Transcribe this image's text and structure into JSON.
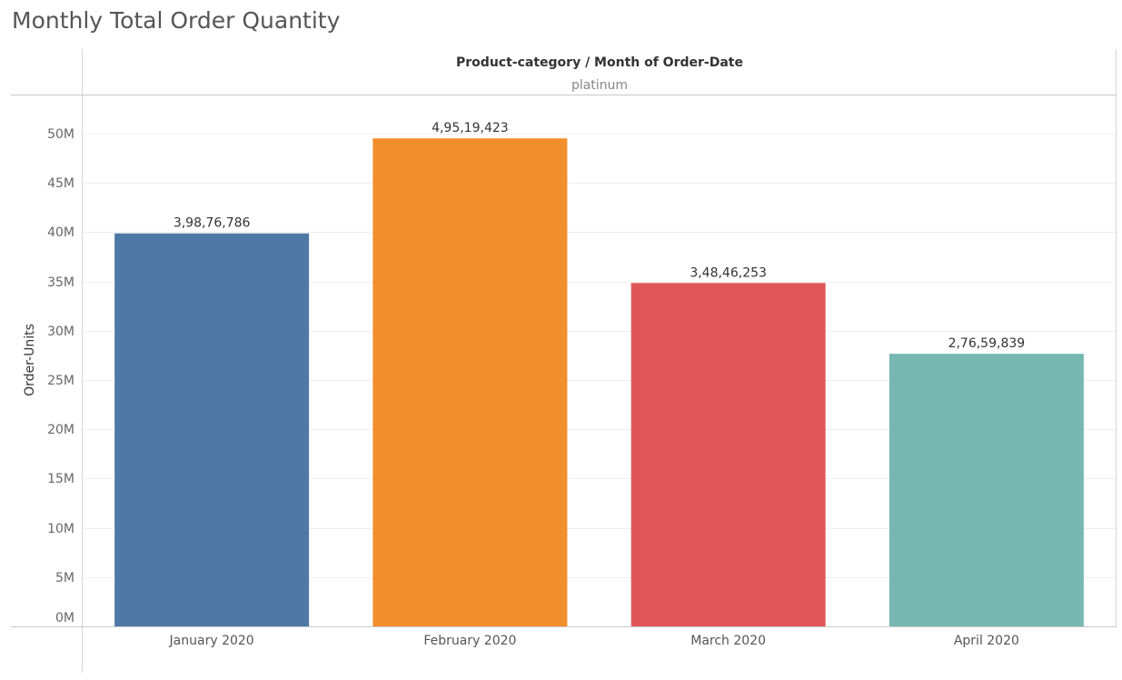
{
  "title": "Monthly Total Order Quantity",
  "header": {
    "field_label": "Product-category / Month of Order-Date",
    "category_value": "platinum"
  },
  "chart_data": {
    "type": "bar",
    "title": "Monthly Total Order Quantity",
    "xlabel": "",
    "ylabel": "Order-Units",
    "categories": [
      "January 2020",
      "February 2020",
      "March 2020",
      "April 2020"
    ],
    "values": [
      39876786,
      49519423,
      34846253,
      27659839
    ],
    "value_labels": [
      "3,98,76,786",
      "4,95,19,423",
      "3,48,46,253",
      "2,76,59,839"
    ],
    "colors": [
      "#4e79a7",
      "#f28e2b",
      "#e15759",
      "#76b7b2"
    ],
    "ylim": [
      0,
      53000000
    ],
    "y_ticks": [
      0,
      5000000,
      10000000,
      15000000,
      20000000,
      25000000,
      30000000,
      35000000,
      40000000,
      45000000,
      50000000
    ],
    "y_tick_labels": [
      "0M",
      "5M",
      "10M",
      "15M",
      "20M",
      "25M",
      "30M",
      "35M",
      "40M",
      "45M",
      "50M"
    ],
    "grid": true,
    "legend": "none"
  }
}
